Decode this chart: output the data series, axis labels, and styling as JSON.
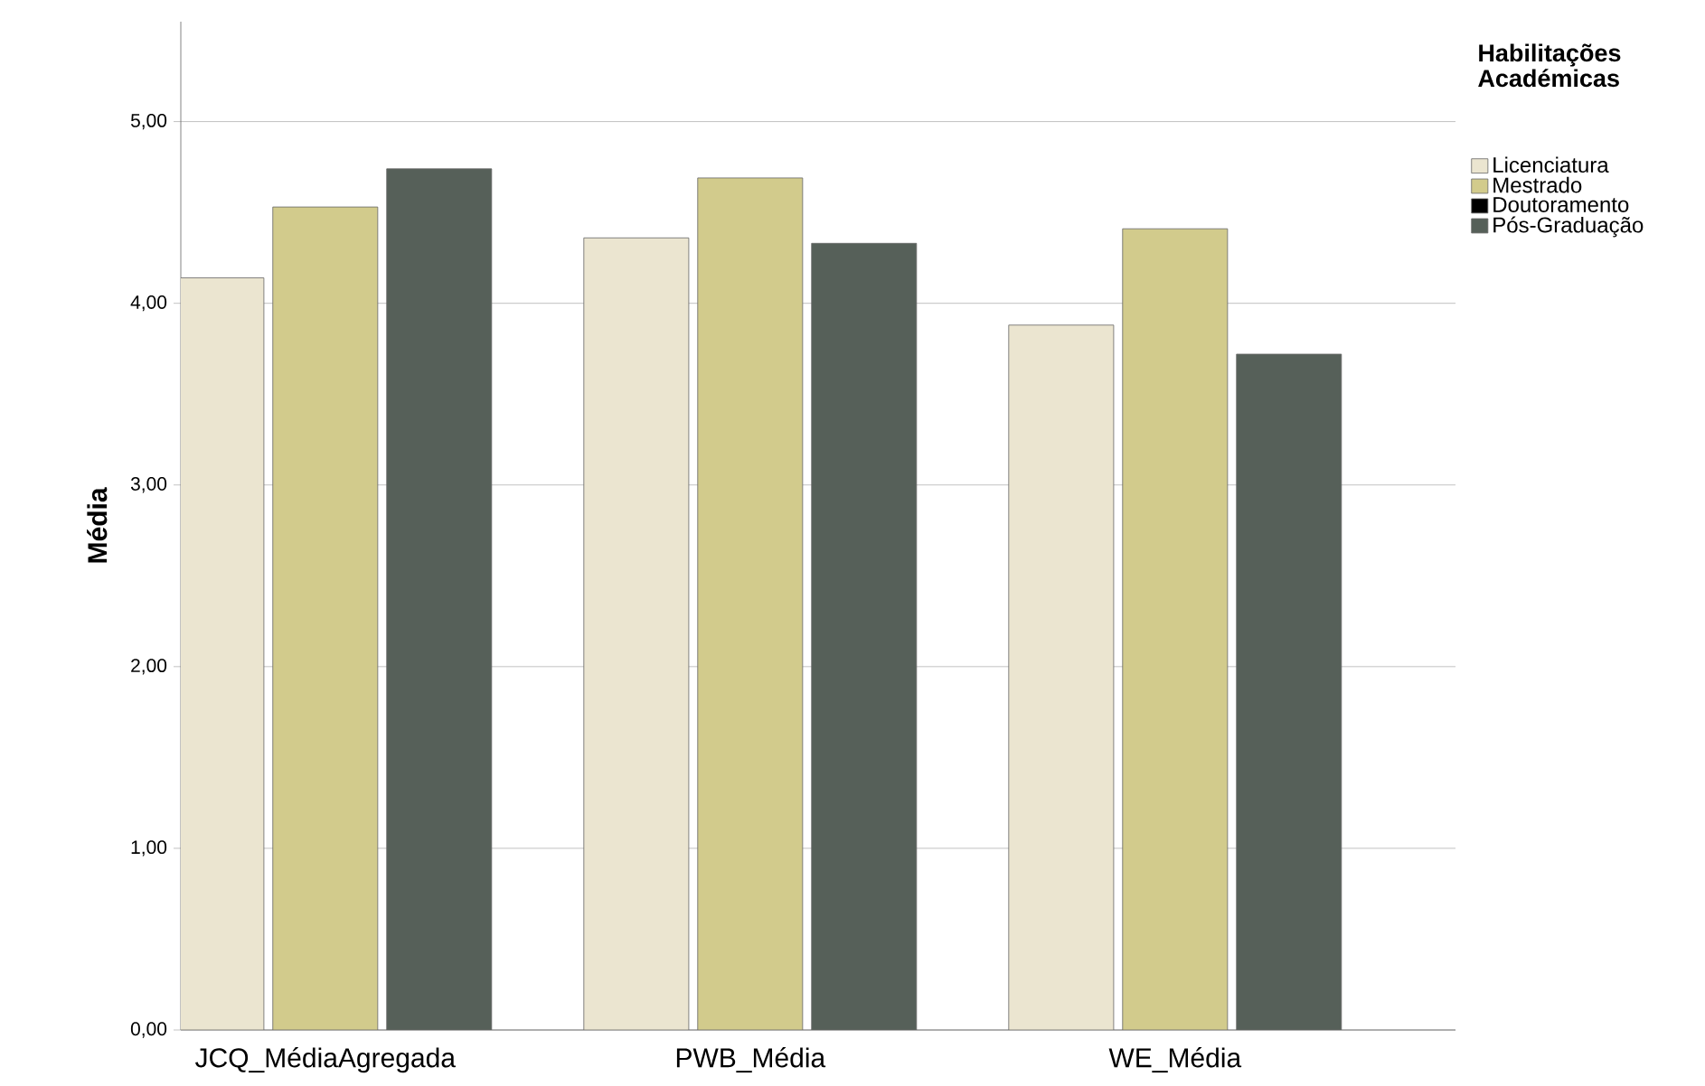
{
  "chart_data": {
    "type": "bar",
    "ylabel": "Média",
    "legend_title": "Habilitações Académicas",
    "categories": [
      "JCQ_MédiaAgregada",
      "PWB_Média",
      "WE_Média"
    ],
    "series": [
      {
        "name": "Licenciatura",
        "color": "#ebe5d0",
        "values": [
          4.14,
          4.36,
          3.88
        ]
      },
      {
        "name": "Mestrado",
        "color": "#d2cb8c",
        "values": [
          4.53,
          4.69,
          4.41
        ]
      },
      {
        "name": "Doutoramento",
        "color": "#000000",
        "values": [
          null,
          null,
          null
        ]
      },
      {
        "name": "Pós-Graduação",
        "color": "#566059",
        "values": [
          4.74,
          4.33,
          3.72
        ]
      }
    ],
    "ylim": [
      0,
      5.55
    ],
    "yticks": [
      {
        "value": 0,
        "label": "0,00"
      },
      {
        "value": 1,
        "label": "1,00"
      },
      {
        "value": 2,
        "label": "2,00"
      },
      {
        "value": 3,
        "label": "3,00"
      },
      {
        "value": 4,
        "label": "4,00"
      },
      {
        "value": 5,
        "label": "5,00"
      }
    ],
    "grid": "y",
    "legend": "right"
  }
}
